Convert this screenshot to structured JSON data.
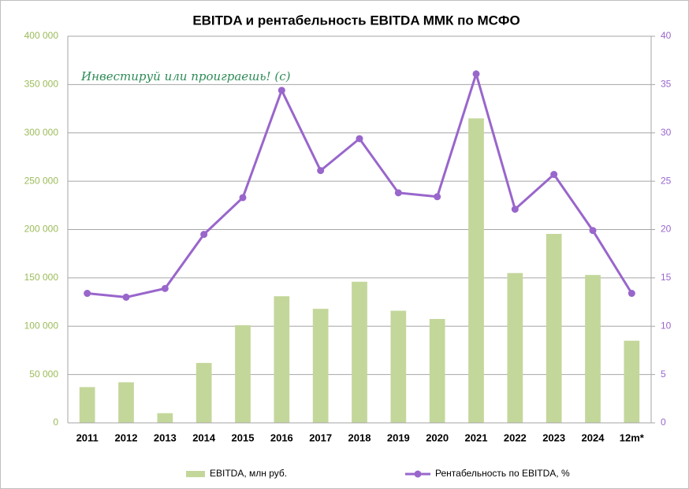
{
  "chart_data": {
    "type": "bar-line",
    "title": "EBITDA и рентабельность  EBITDA ММК по МСФО",
    "annotation": "Инвестируй или проиграешь! (с)",
    "categories": [
      "2011",
      "2012",
      "2013",
      "2014",
      "2015",
      "2016",
      "2017",
      "2018",
      "2019",
      "2020",
      "2021",
      "2022",
      "2023",
      "2024",
      "12m*"
    ],
    "series": [
      {
        "name": "EBITDA, млн руб.",
        "type": "bar",
        "color": "#c4d79b",
        "values": [
          37000,
          42000,
          10000,
          62000,
          101000,
          131000,
          118000,
          146000,
          116000,
          107500,
          315000,
          155000,
          195500,
          153000,
          85000
        ]
      },
      {
        "name": "Рентабельность по EBITDA, %",
        "type": "line",
        "axis": "y2",
        "color": "#9966cc",
        "values": [
          13.4,
          13.0,
          13.9,
          19.5,
          23.3,
          34.4,
          26.1,
          29.4,
          23.8,
          23.4,
          36.1,
          22.1,
          25.7,
          19.9,
          13.4
        ]
      }
    ],
    "ylim": [
      0,
      400000
    ],
    "yticks": [
      0,
      {
        "value": 50000,
        "label": "50 000"
      },
      {
        "value": 100000,
        "label": "100 000"
      },
      {
        "value": 150000,
        "label": "150 000"
      },
      {
        "value": 200000,
        "label": "200 000"
      },
      {
        "value": 250000,
        "label": "250 000"
      },
      {
        "value": 300000,
        "label": "300 000"
      },
      {
        "value": 350000,
        "label": "350 000"
      },
      {
        "value": 400000,
        "label": "400 000"
      }
    ],
    "y2lim": [
      0,
      40
    ],
    "y2ticks": [
      0,
      5,
      10,
      15,
      20,
      25,
      30,
      35,
      40
    ],
    "grid": true,
    "legend": "bottom"
  }
}
